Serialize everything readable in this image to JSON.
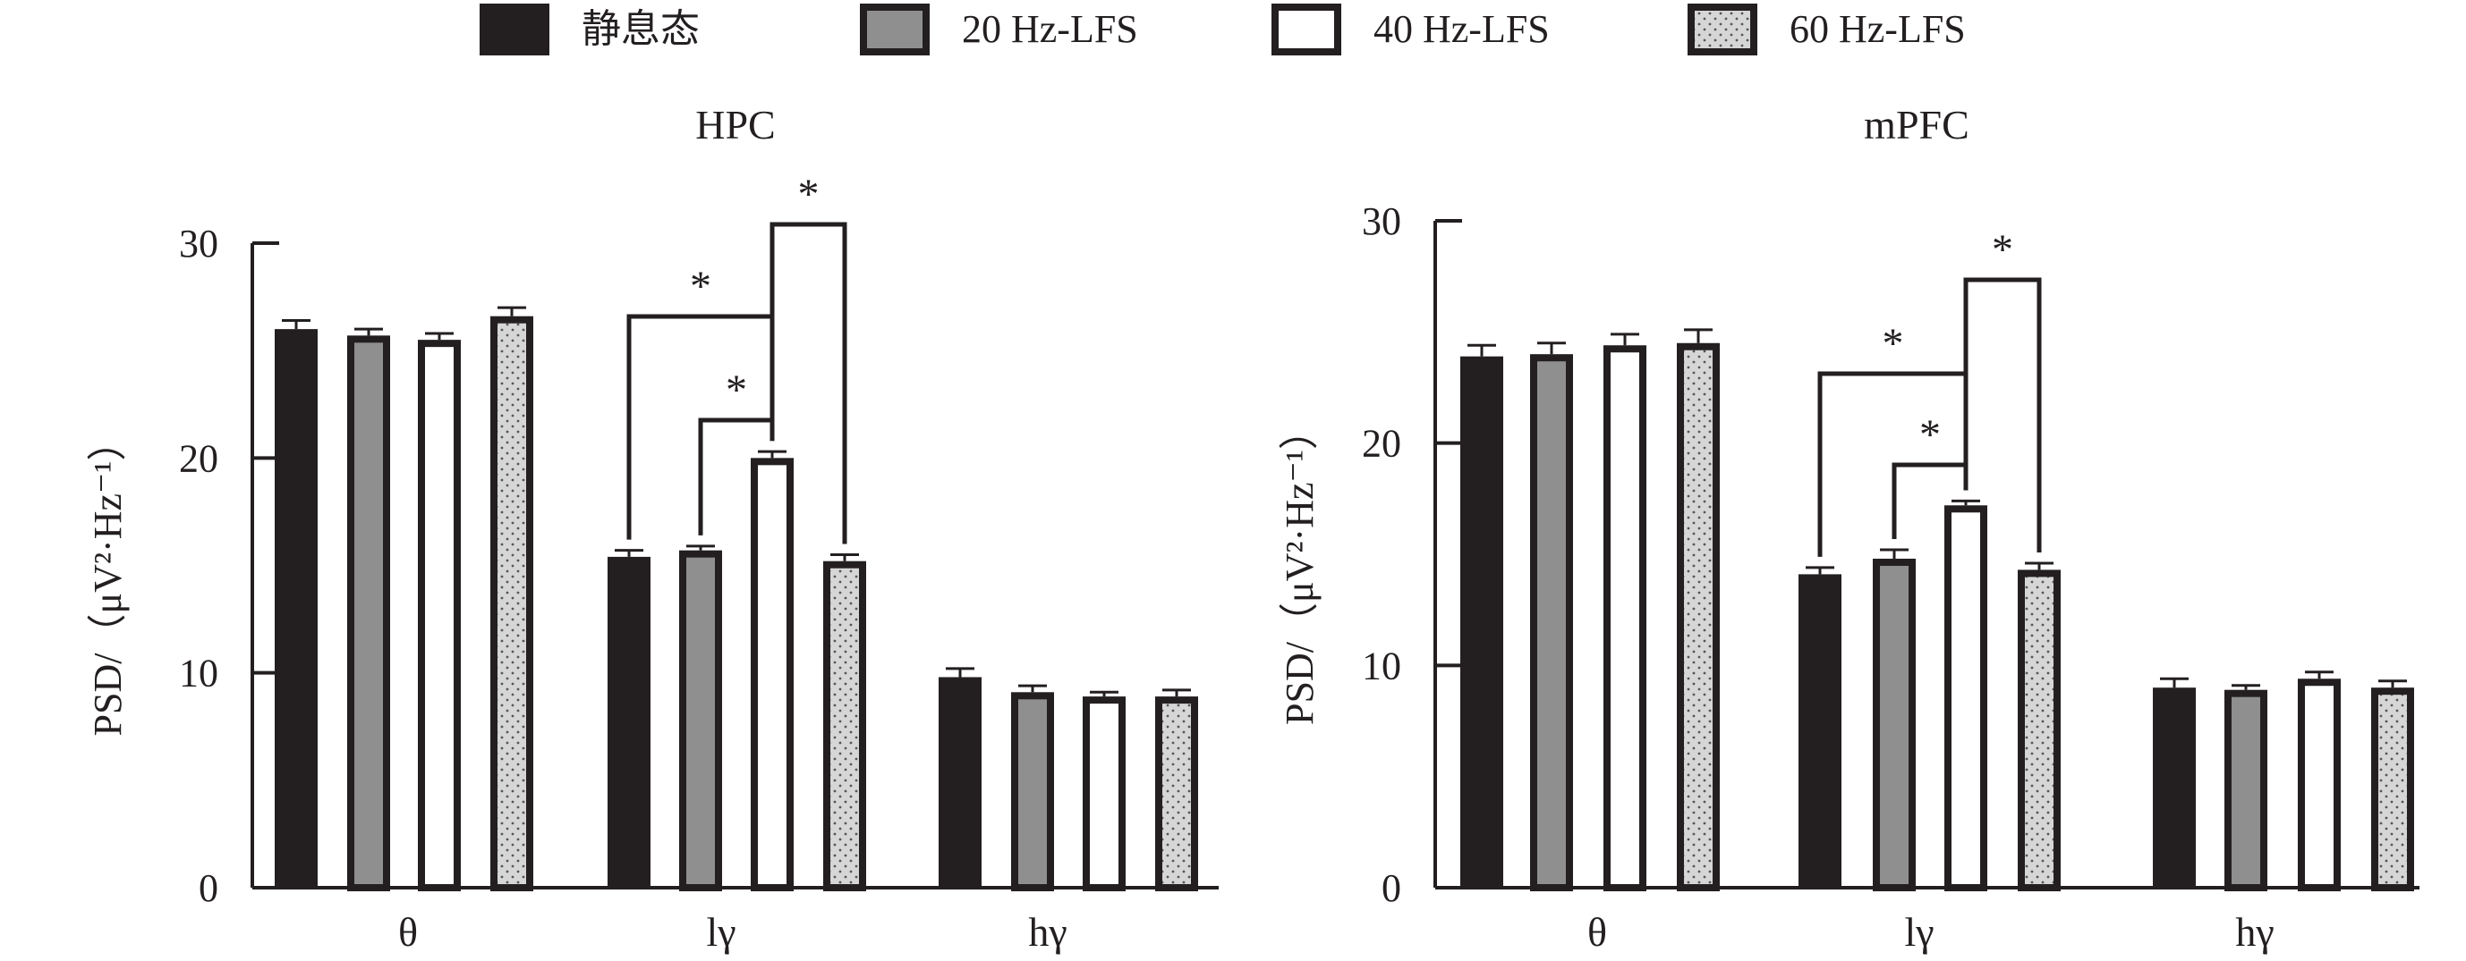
{
  "legend": {
    "items": [
      {
        "label": "静息态",
        "style": "black"
      },
      {
        "label": "20 Hz-LFS",
        "style": "gray"
      },
      {
        "label": "40 Hz-LFS",
        "style": "white"
      },
      {
        "label": "60 Hz-LFS",
        "style": "dotted"
      }
    ]
  },
  "colors": {
    "ink": "#231f20",
    "gray_fill": "#8f8f8f",
    "dot_fill": "#d6d6d6",
    "white_fill": "#ffffff"
  },
  "chart_data": [
    {
      "type": "bar",
      "title": "HPC",
      "ylabel": "PSD/（μV²·Hz⁻¹）",
      "ylim": [
        0,
        30
      ],
      "yticks": [
        "0",
        "10",
        "20",
        "30"
      ],
      "categories": [
        "θ",
        "lγ",
        "hγ"
      ],
      "series": [
        {
          "name": "静息态",
          "values": [
            26.0,
            15.4,
            9.8
          ],
          "errors": [
            0.4,
            0.3,
            0.4
          ]
        },
        {
          "name": "20 Hz-LFS",
          "values": [
            25.7,
            15.7,
            9.1
          ],
          "errors": [
            0.3,
            0.2,
            0.3
          ]
        },
        {
          "name": "40 Hz-LFS",
          "values": [
            25.5,
            20.0,
            8.9
          ],
          "errors": [
            0.3,
            0.3,
            0.2
          ]
        },
        {
          "name": "60 Hz-LFS",
          "values": [
            26.6,
            15.2,
            8.9
          ],
          "errors": [
            0.4,
            0.3,
            0.3
          ]
        }
      ],
      "annotations": [
        {
          "from": "静息态",
          "to": "40 Hz-LFS",
          "category": "lγ",
          "label": "*"
        },
        {
          "from": "20 Hz-LFS",
          "to": "40 Hz-LFS",
          "category": "lγ",
          "label": "*"
        },
        {
          "from": "40 Hz-LFS",
          "to": "60 Hz-LFS",
          "category": "lγ",
          "label": "*"
        }
      ]
    },
    {
      "type": "bar",
      "title": "mPFC",
      "ylabel": "PSD/（μV²·Hz⁻¹）",
      "ylim": [
        0,
        30
      ],
      "yticks": [
        "0",
        "10",
        "20",
        "30"
      ],
      "categories": [
        "θ",
        "lγ",
        "hγ"
      ],
      "series": [
        {
          "name": "静息态",
          "values": [
            23.9,
            14.1,
            9.0
          ],
          "errors": [
            0.5,
            0.3,
            0.4
          ]
        },
        {
          "name": "20 Hz-LFS",
          "values": [
            24.0,
            14.8,
            8.9
          ],
          "errors": [
            0.5,
            0.4,
            0.2
          ]
        },
        {
          "name": "40 Hz-LFS",
          "values": [
            24.4,
            17.2,
            9.4
          ],
          "errors": [
            0.5,
            0.2,
            0.3
          ]
        },
        {
          "name": "60 Hz-LFS",
          "values": [
            24.5,
            14.3,
            9.0
          ],
          "errors": [
            0.6,
            0.3,
            0.3
          ]
        }
      ],
      "annotations": [
        {
          "from": "静息态",
          "to": "40 Hz-LFS",
          "category": "lγ",
          "label": "*"
        },
        {
          "from": "20 Hz-LFS",
          "to": "40 Hz-LFS",
          "category": "lγ",
          "label": "*"
        },
        {
          "from": "40 Hz-LFS",
          "to": "60 Hz-LFS",
          "category": "lγ",
          "label": "*"
        }
      ]
    }
  ]
}
